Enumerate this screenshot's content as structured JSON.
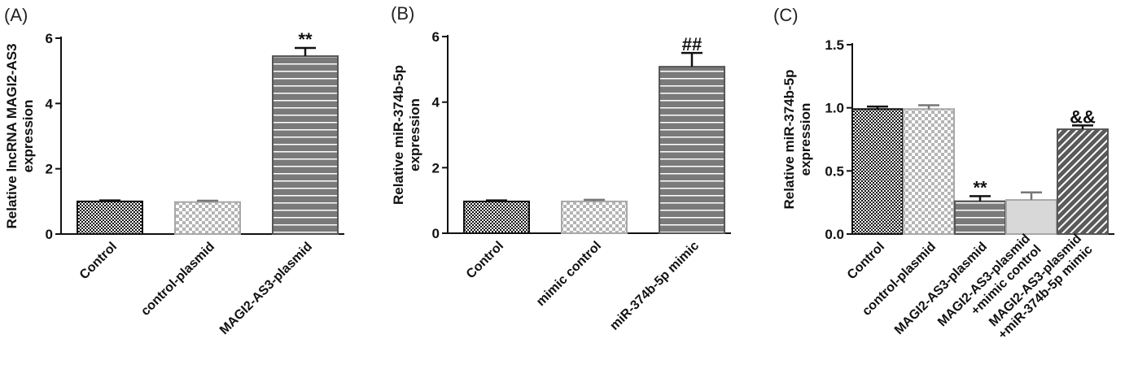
{
  "chart_data": [
    {
      "type": "bar",
      "panel_label": "(A)",
      "ylabel_lines": [
        "Relative lncRNA MAGI2-AS3",
        "expression"
      ],
      "ylim": [
        0,
        6
      ],
      "yticks": [
        "0",
        "2",
        "4",
        "6"
      ],
      "categories": [
        [
          "Control"
        ],
        [
          "control-plasmid"
        ],
        [
          "MAGI2-AS3-plasmid"
        ]
      ],
      "values": [
        1.0,
        0.98,
        5.45
      ],
      "errors": [
        0.03,
        0.04,
        0.25
      ],
      "annotations": [
        "",
        "",
        "**"
      ],
      "patterns": [
        "checker-black",
        "checker-light",
        "stripes-gray"
      ],
      "grid": false
    },
    {
      "type": "bar",
      "panel_label": "(B)",
      "ylabel_lines": [
        "Relative miR-374b-5p",
        "expression"
      ],
      "ylim": [
        0,
        6
      ],
      "yticks": [
        "0",
        "2",
        "4",
        "6"
      ],
      "categories": [
        [
          "Control"
        ],
        [
          "mimic control"
        ],
        [
          "miR-374b-5p mimic"
        ]
      ],
      "values": [
        0.97,
        0.97,
        5.08
      ],
      "errors": [
        0.03,
        0.05,
        0.42
      ],
      "annotations": [
        "",
        "",
        "##"
      ],
      "patterns": [
        "checker-black",
        "checker-light",
        "stripes-gray"
      ],
      "grid": false
    },
    {
      "type": "bar",
      "panel_label": "(C)",
      "ylabel_lines": [
        "Relative miR-374b-5p",
        "expression"
      ],
      "ylim": [
        0,
        1.5
      ],
      "yticks": [
        "0.0",
        "0.5",
        "1.0",
        "1.5"
      ],
      "categories": [
        [
          "Control"
        ],
        [
          "control-plasmid"
        ],
        [
          "MAGI2-AS3-plasmid"
        ],
        [
          "MAGI2-AS3-plasmid",
          "+mimic control"
        ],
        [
          "MAGI2-AS3-plasmid",
          "+miR-374b-5p mimic"
        ]
      ],
      "values": [
        0.99,
        0.99,
        0.26,
        0.27,
        0.83
      ],
      "errors": [
        0.02,
        0.03,
        0.04,
        0.06,
        0.03
      ],
      "annotations": [
        "",
        "",
        "**",
        "",
        "&&"
      ],
      "patterns": [
        "checker-black",
        "checker-light",
        "stripes-gray",
        "solid-light",
        "diag-dark"
      ],
      "grid": false
    }
  ]
}
